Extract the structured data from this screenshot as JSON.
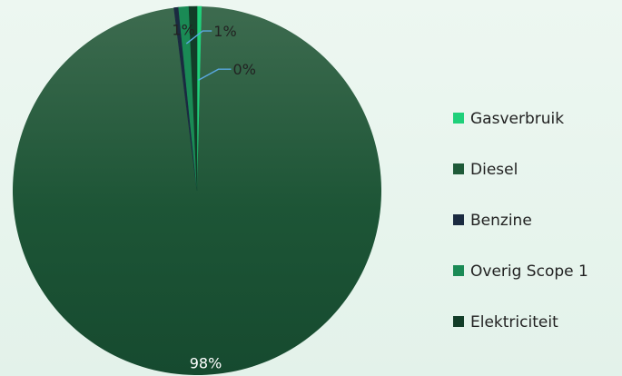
{
  "chart_data": {
    "type": "pie",
    "title": "",
    "slices": [
      {
        "label": "Gasverbruik",
        "value": 0.4,
        "display": "0%",
        "color": "#1fd07a"
      },
      {
        "label": "Diesel",
        "value": 97.6,
        "display": "98%",
        "color": "#1e5a38"
      },
      {
        "label": "Benzine",
        "value": 0.4,
        "display": "",
        "color": "#1a2a40"
      },
      {
        "label": "Overig Scope 1",
        "value": 0.9,
        "display": "1%",
        "color": "#1a8a55"
      },
      {
        "label": "Elektriciteit",
        "value": 0.7,
        "display": "1%",
        "color": "#123d28"
      }
    ],
    "legend_position": "right",
    "grid": false
  }
}
